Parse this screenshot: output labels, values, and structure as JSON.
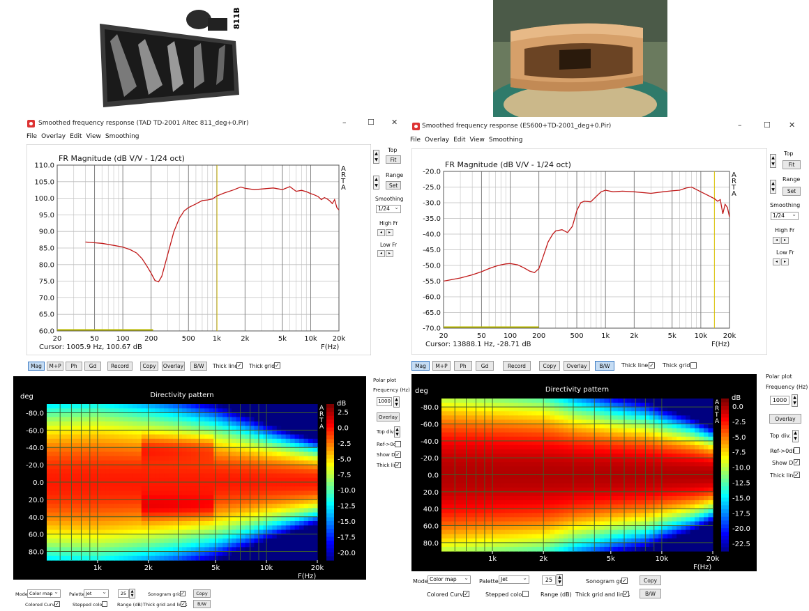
{
  "photo_left": {
    "label": "811B"
  },
  "fr_left": {
    "window_title": "Smoothed frequency response (TAD TD-2001 Altec 811_deg+0.Pir)",
    "menu": [
      "File",
      "Overlay",
      "Edit",
      "View",
      "Smoothing"
    ],
    "right_panel": {
      "top": "Top",
      "fit": "Fit",
      "range": "Range",
      "set": "Set",
      "smoothing": "Smoothing",
      "smoothing_value": "1/24",
      "high_fr": "High Fr",
      "low_fr": "Low Fr"
    },
    "bottom_buttons": [
      "Mag",
      "M+P",
      "Ph",
      "Gd",
      "Record",
      "Copy",
      "Overlay",
      "B/W"
    ],
    "thick_line": "Thick line",
    "thick_grid": "Thick grid",
    "thick_line_checked": true,
    "thick_grid_checked": true
  },
  "fr_right": {
    "window_title": "Smoothed frequency response (ES600+TD-2001_deg+0.Pir)",
    "menu": [
      "File",
      "Overlay",
      "Edit",
      "View",
      "Smoothing"
    ],
    "right_panel": {
      "top": "Top",
      "fit": "Fit",
      "range": "Range",
      "set": "Set",
      "smoothing": "Smoothing",
      "smoothing_value": "1/24",
      "high_fr": "High Fr",
      "low_fr": "Low Fr"
    },
    "bottom_buttons": [
      "Mag",
      "M+P",
      "Ph",
      "Gd",
      "Record",
      "Copy",
      "Overlay",
      "B/W"
    ],
    "thick_line": "Thick line",
    "thick_grid": "Thick grid",
    "thick_line_checked": true,
    "thick_grid_checked": false
  },
  "dir_left": {
    "side": {
      "polar_plot": "Polar plot",
      "frequency": "Frequency (Hz)",
      "frequency_value": "1000",
      "overlay": "Overlay",
      "top_div": "Top div.",
      "ref": "Ref->0dB",
      "show_di": "Show DI",
      "thick_line": "Thick line"
    },
    "bottom": {
      "mode": "Mode",
      "mode_value": "Color map",
      "palette": "Palette",
      "palette_value": "Jet",
      "range_value": "25",
      "sonogram_grid": "Sonogram grid",
      "copy": "Copy",
      "colored_curves": "Colored Curves",
      "stepped_colors": "Stepped colors",
      "range_db": "Range (dB)",
      "thick_grid_lines": "Thick grid and  lines",
      "bw": "B/W"
    }
  },
  "dir_right": {
    "side": {
      "polar_plot": "Polar plot",
      "frequency": "Frequency (Hz)",
      "frequency_value": "1000",
      "overlay": "Overlay",
      "top_div": "Top div.",
      "ref": "Ref->0dB",
      "show_di": "Show DI",
      "thick_line": "Thick line"
    },
    "bottom": {
      "mode": "Mode",
      "mode_value": "Color map",
      "palette": "Palette",
      "palette_value": "Jet",
      "range_value": "25",
      "sonogram_grid": "Sonogram grid",
      "copy": "Copy",
      "colored_curves": "Colored Curves",
      "stepped_colors": "Stepped colors",
      "range_db": "Range (dB)",
      "thick_grid_lines": "Thick grid and  lines",
      "bw": "B/W"
    }
  },
  "chart_data": [
    {
      "type": "line",
      "title": "FR Magnitude (dB V/V - 1/24 oct)",
      "xlabel": "F(Hz)",
      "log_x": true,
      "xlim": [
        20,
        20000
      ],
      "ylim": [
        60,
        110
      ],
      "x_ticks": [
        "20",
        "50",
        "100",
        "200",
        "500",
        "1k",
        "2k",
        "5k",
        "10k",
        "20k"
      ],
      "y_ticks": [
        "110.0",
        "105.0",
        "100.0",
        "95.0",
        "90.0",
        "85.0",
        "80.0",
        "75.0",
        "70.0",
        "65.0",
        "60.0"
      ],
      "side_label": [
        "A",
        "R",
        "T",
        "A"
      ],
      "cursor": "Cursor: 1005.9 Hz, 100.67 dB",
      "cursor_freq": 1005.9,
      "line_color": "#c01818",
      "series": [
        {
          "x": [
            40,
            60,
            80,
            100,
            120,
            140,
            160,
            180,
            200,
            220,
            240,
            260,
            300,
            350,
            400,
            450,
            500,
            600,
            700,
            800,
            900,
            1000,
            1200,
            1500,
            1800,
            2000,
            2500,
            3000,
            4000,
            5000,
            6000,
            7000,
            8000,
            9000,
            10000,
            11000,
            12000,
            13000,
            14000,
            15000,
            16000,
            17000,
            18000,
            19000,
            20000
          ],
          "y": [
            86.8,
            86.4,
            85.8,
            85.3,
            84.5,
            83.5,
            81.8,
            79.6,
            77.4,
            75.2,
            74.8,
            76.5,
            83.0,
            90.0,
            94.0,
            96.2,
            97.2,
            98.3,
            99.3,
            99.5,
            99.8,
            100.7,
            101.6,
            102.5,
            103.4,
            103.0,
            102.6,
            102.8,
            103.1,
            102.6,
            103.5,
            102.1,
            102.4,
            102.0,
            101.4,
            101.0,
            100.5,
            99.6,
            100.2,
            99.8,
            99.2,
            98.4,
            99.6,
            97.2,
            96.5
          ]
        }
      ]
    },
    {
      "type": "line",
      "title": "FR Magnitude (dB V/V - 1/24 oct)",
      "xlabel": "F(Hz)",
      "log_x": true,
      "xlim": [
        20,
        20000
      ],
      "ylim": [
        -70,
        -20
      ],
      "x_ticks": [
        "20",
        "50",
        "100",
        "200",
        "500",
        "1k",
        "2k",
        "5k",
        "10k",
        "20k"
      ],
      "y_ticks": [
        "-20.0",
        "-25.0",
        "-30.0",
        "-35.0",
        "-40.0",
        "-45.0",
        "-50.0",
        "-55.0",
        "-60.0",
        "-65.0",
        "-70.0"
      ],
      "side_label": [
        "A",
        "R",
        "T",
        "A"
      ],
      "cursor": "Cursor: 13888.1 Hz, -28.71 dB",
      "cursor_freq": 13888.1,
      "line_color": "#c01818",
      "series": [
        {
          "x": [
            20,
            30,
            40,
            50,
            60,
            70,
            80,
            90,
            100,
            120,
            140,
            160,
            180,
            200,
            220,
            250,
            280,
            300,
            350,
            400,
            450,
            500,
            550,
            600,
            700,
            800,
            900,
            1000,
            1200,
            1500,
            2000,
            3000,
            4000,
            5000,
            6000,
            7000,
            8000,
            9000,
            10000,
            12000,
            13888,
            15000,
            16000,
            17000,
            18000,
            19000,
            20000
          ],
          "y": [
            -55.0,
            -54.0,
            -53.0,
            -52.0,
            -51.0,
            -50.3,
            -49.8,
            -49.5,
            -49.4,
            -49.8,
            -50.8,
            -51.8,
            -52.3,
            -51.0,
            -47.5,
            -42.5,
            -40.0,
            -39.0,
            -38.6,
            -39.5,
            -37.5,
            -32.5,
            -30.0,
            -29.5,
            -29.7,
            -28.0,
            -26.5,
            -26.0,
            -26.5,
            -26.3,
            -26.5,
            -27.0,
            -26.5,
            -26.2,
            -26.0,
            -25.3,
            -25.0,
            -25.8,
            -26.5,
            -27.7,
            -28.7,
            -29.5,
            -29.0,
            -33.5,
            -30.5,
            -31.5,
            -34.5
          ]
        }
      ]
    },
    {
      "type": "heatmap",
      "title": "Directivity pattern",
      "ylabel": "deg",
      "xlabel": "F(Hz)",
      "log_x": true,
      "xlim": [
        500,
        20000
      ],
      "ylim": [
        -90,
        90
      ],
      "x_ticks": [
        "1k",
        "2k",
        "5k",
        "10k",
        "20k"
      ],
      "y_ticks": [
        "-80.0",
        "-60.0",
        "-40.0",
        "-20.0",
        "0.0",
        "20.0",
        "40.0",
        "60.0",
        "80.0"
      ],
      "colorbar_label": "dB",
      "colorbar_ticks": [
        "2.5",
        "0.0",
        "-2.5",
        "-5.0",
        "-7.5",
        "-10.0",
        "-12.5",
        "-15.0",
        "-17.5",
        "-20.0"
      ],
      "colorbar_range": [
        -21.25,
        3.75
      ],
      "side_label": [
        "A",
        "R",
        "T",
        "A"
      ],
      "beamwidth_deg": {
        "freq": [
          500,
          1000,
          2000,
          3000,
          5000,
          8000,
          10000,
          15000,
          20000
        ],
        "half_angle_6db": [
          62,
          64,
          58,
          54,
          48,
          40,
          36,
          30,
          26
        ]
      },
      "hotspots": {
        "angles": [
          -40,
          30
        ],
        "freq_range": [
          1800,
          5000
        ]
      }
    },
    {
      "type": "heatmap",
      "title": "Directivity pattern",
      "ylabel": "deg",
      "xlabel": "F(Hz)",
      "log_x": true,
      "xlim": [
        500,
        20000
      ],
      "ylim": [
        -90,
        90
      ],
      "x_ticks": [
        "1k",
        "2k",
        "5k",
        "10k",
        "20k"
      ],
      "y_ticks": [
        "-80.0",
        "-60.0",
        "-40.0",
        "-20.0",
        "0.0",
        "20.0",
        "40.0",
        "60.0",
        "80.0"
      ],
      "colorbar_label": "dB",
      "colorbar_ticks": [
        "0.0",
        "-2.5",
        "-5.0",
        "-7.5",
        "-10.0",
        "-12.5",
        "-15.0",
        "-17.5",
        "-20.0",
        "-22.5"
      ],
      "colorbar_range": [
        -23.75,
        1.25
      ],
      "side_label": [
        "A",
        "R",
        "T",
        "A"
      ],
      "beamwidth_deg": {
        "freq": [
          500,
          1000,
          2000,
          3000,
          5000,
          8000,
          10000,
          15000,
          20000
        ],
        "half_angle_6db": [
          70,
          66,
          62,
          54,
          48,
          44,
          40,
          34,
          28
        ]
      }
    }
  ]
}
